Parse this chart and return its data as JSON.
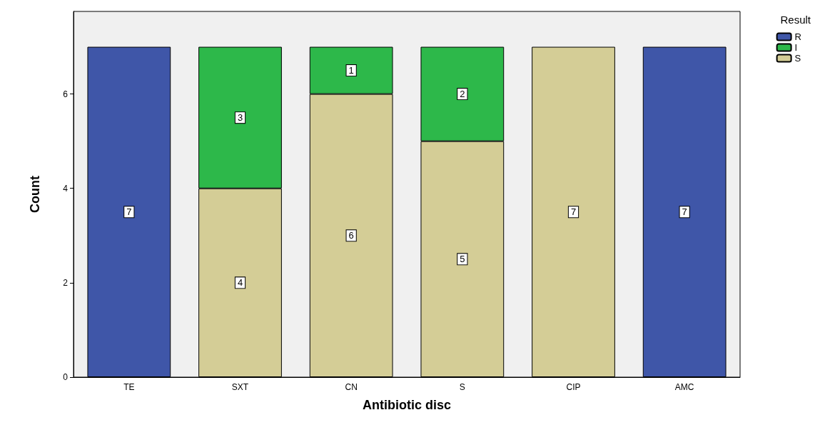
{
  "chart_data": {
    "type": "bar",
    "stacked": true,
    "xlabel": "Antibiotic disc",
    "ylabel": "Count",
    "legend_title": "Result",
    "legend": "top right",
    "categories": [
      "TE",
      "SXT",
      "CN",
      "S",
      "CIP",
      "AMC"
    ],
    "series": [
      {
        "name": "S",
        "color": "#d4cd96",
        "values": [
          null,
          4,
          6,
          5,
          7,
          null
        ]
      },
      {
        "name": "I",
        "color": "#2db84a",
        "values": [
          null,
          3,
          1,
          2,
          null,
          null
        ]
      },
      {
        "name": "R",
        "color": "#3f56a8",
        "values": [
          7,
          null,
          null,
          null,
          null,
          7
        ]
      }
    ],
    "ylim": [
      0,
      7.75
    ],
    "yticks": [
      0,
      2,
      4,
      6
    ],
    "data_labels": true
  }
}
